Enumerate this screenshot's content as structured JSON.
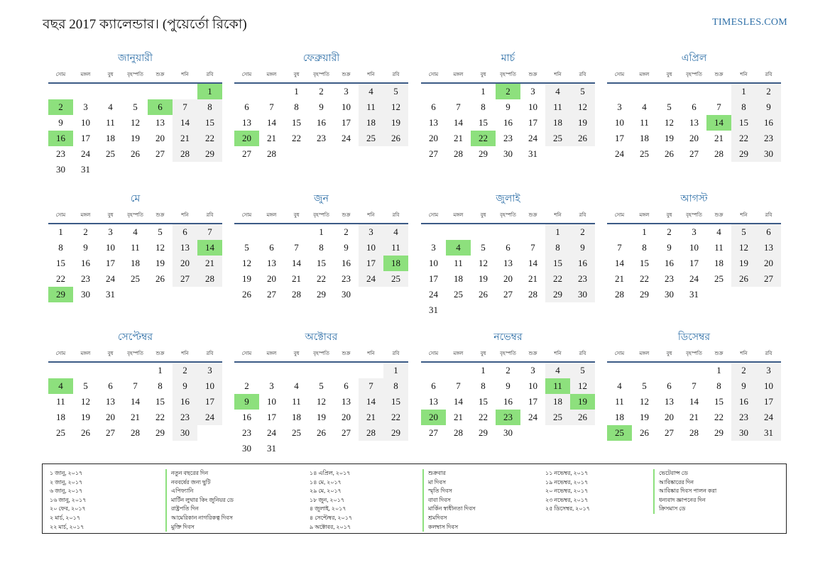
{
  "header": {
    "title": "বছর 2017 ক্যালেন্ডার। (পুয়ের্তো রিকো)",
    "brand": "TIMESLES.COM"
  },
  "weekdays": [
    "সোম",
    "মঙ্গল",
    "বুধ",
    "বৃহস্পতি",
    "শুক্র",
    "শনি",
    "রবি"
  ],
  "months": [
    {
      "name": "জানুয়ারী",
      "offset": 6,
      "days": 31,
      "holidays": [
        1,
        2,
        6,
        16
      ]
    },
    {
      "name": "ফেব্রুয়ারী",
      "offset": 2,
      "days": 28,
      "holidays": [
        20
      ]
    },
    {
      "name": "মার্চ",
      "offset": 2,
      "days": 31,
      "holidays": [
        2,
        22
      ]
    },
    {
      "name": "এপ্রিল",
      "offset": 5,
      "days": 30,
      "holidays": [
        14
      ]
    },
    {
      "name": "মে",
      "offset": 0,
      "days": 31,
      "holidays": [
        14,
        29
      ]
    },
    {
      "name": "জুন",
      "offset": 3,
      "days": 30,
      "holidays": [
        18
      ]
    },
    {
      "name": "জুলাই",
      "offset": 5,
      "days": 31,
      "holidays": [
        4
      ]
    },
    {
      "name": "আগস্ট",
      "offset": 1,
      "days": 31,
      "holidays": []
    },
    {
      "name": "সেপ্টেম্বর",
      "offset": 4,
      "days": 30,
      "holidays": [
        4
      ]
    },
    {
      "name": "অক্টোবর",
      "offset": 6,
      "days": 31,
      "holidays": [
        9
      ]
    },
    {
      "name": "নভেম্বর",
      "offset": 2,
      "days": 30,
      "holidays": [
        11,
        19,
        20,
        23
      ]
    },
    {
      "name": "ডিসেম্বর",
      "offset": 4,
      "days": 31,
      "holidays": [
        25
      ]
    }
  ],
  "legend": {
    "col1_dates": [
      "১ জানু, ২০১৭",
      "২ জানু, ২০১৭",
      "৬ জানু, ২০১৭",
      "১৬ জানু, ২০১৭",
      "২০ ফেব, ২০১৭",
      "২ মার্চ, ২০১৭",
      "২২ মার্চ, ২০১৭"
    ],
    "col1_names": [
      "নতুন বছরের দিন",
      "নববর্ষের জন্য ছুটি",
      "এপিফ্যানি",
      "মার্টিন লুথার কিং জুনিয়র ডে",
      "রাষ্ট্রপতি দিন",
      "আমেরিকান নাগরিকত্ব দিবস",
      "মুক্তি দিবস"
    ],
    "col2_dates": [
      "১৪ এপ্রিল, ২০১৭",
      "১৪ মে, ২০১৭",
      "২৯ মে, ২০১৭",
      "১৮ জুন, ২০১৭",
      "৪ জুলাই, ২০১৭",
      "৪ সেপ্টেম্বর, ২০১৭",
      "৯ অক্টোবর, ২০১৭"
    ],
    "col2_names": [
      "শুক্রবার",
      "মা দিবস",
      "স্মৃতি দিবস",
      "বাবা দিবস",
      "মার্কিন স্বাধীনতা দিবস",
      "শ্রমদিবস",
      "কলম্বাস দিবস"
    ],
    "col3_dates": [
      "১১ নভেম্বর, ২০১৭",
      "১৯ নভেম্বর, ২০১৭",
      "২০ নভেম্বর, ২০১৭",
      "২৩ নভেম্বর, ২০১৭",
      "২৫ ডিসেম্বর, ২০১৭"
    ],
    "col3_names": [
      "ভেটেরান্স ডে",
      "আবিষ্কারের দিন",
      "আবিষ্কার দিবস পালন করা",
      "ধন্যবাদ জ্ঞাপনের দিন",
      "ক্রিসমাস ডে"
    ]
  },
  "colors": {
    "accent": "#2e6fa7",
    "holiday": "#8de07d",
    "weekend": "#f1f1f1",
    "rule": "#3c5b86"
  }
}
